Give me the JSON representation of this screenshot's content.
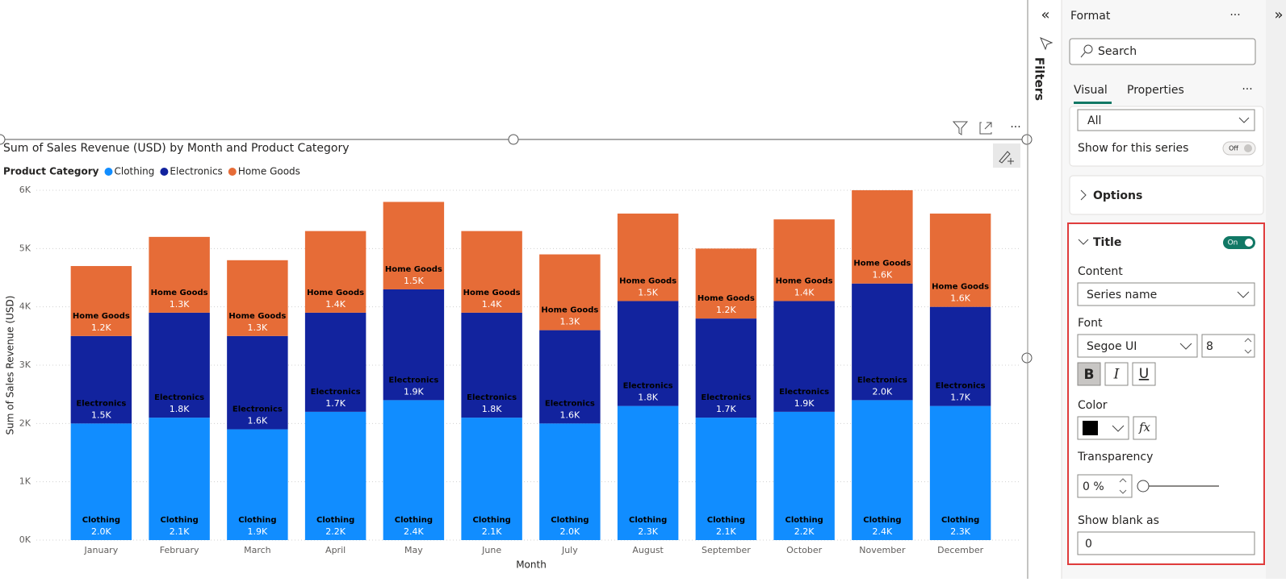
{
  "chart_data": {
    "type": "bar",
    "stacked": true,
    "title": "Sum of Sales Revenue (USD) by Month and Product Category",
    "legend_title": "Product Category",
    "legend": "top-left",
    "x_label": "Month",
    "y_label": "Sum of Sales Revenue (USD)",
    "categories": [
      "January",
      "February",
      "March",
      "April",
      "May",
      "June",
      "July",
      "August",
      "September",
      "October",
      "November",
      "December"
    ],
    "series": [
      {
        "name": "Clothing",
        "color": "#118DFF",
        "values": [
          2000,
          2100,
          1900,
          2200,
          2400,
          2100,
          2000,
          2300,
          2100,
          2200,
          2400,
          2300
        ],
        "value_labels": [
          "2.0K",
          "2.1K",
          "1.9K",
          "2.2K",
          "2.4K",
          "2.1K",
          "2.0K",
          "2.3K",
          "2.1K",
          "2.2K",
          "2.4K",
          "2.3K"
        ]
      },
      {
        "name": "Electronics",
        "color": "#12239E",
        "values": [
          1500,
          1800,
          1600,
          1700,
          1900,
          1800,
          1600,
          1800,
          1700,
          1900,
          2000,
          1700
        ],
        "value_labels": [
          "1.5K",
          "1.8K",
          "1.6K",
          "1.7K",
          "1.9K",
          "1.8K",
          "1.6K",
          "1.8K",
          "1.7K",
          "1.9K",
          "2.0K",
          "1.7K"
        ]
      },
      {
        "name": "Home Goods",
        "color": "#E66C37",
        "values": [
          1200,
          1300,
          1300,
          1400,
          1500,
          1400,
          1300,
          1500,
          1200,
          1400,
          1600,
          1600
        ],
        "value_labels": [
          "1.2K",
          "1.3K",
          "1.3K",
          "1.4K",
          "1.5K",
          "1.4K",
          "1.3K",
          "1.5K",
          "1.2K",
          "1.4K",
          "1.6K",
          "1.6K"
        ]
      }
    ],
    "ylim": [
      0,
      6000
    ],
    "yticks": [
      {
        "value": 0,
        "label": "0K"
      },
      {
        "value": 1000,
        "label": "1K"
      },
      {
        "value": 2000,
        "label": "2K"
      },
      {
        "value": 3000,
        "label": "3K"
      },
      {
        "value": 4000,
        "label": "4K"
      },
      {
        "value": 5000,
        "label": "5K"
      },
      {
        "value": 6000,
        "label": "6K"
      }
    ],
    "grid": true
  },
  "filters_pane": {
    "label": "Filters"
  },
  "format_pane": {
    "title": "Format",
    "search": "Search",
    "tabs": [
      "Visual",
      "Properties"
    ],
    "series_dropdown": "All",
    "show_for_series": "Show for this series",
    "show_for_series_toggle": "Off",
    "options": "Options",
    "title_section": {
      "heading": "Title",
      "toggle": "On",
      "content_label": "Content",
      "content_value": "Series name",
      "font_label": "Font",
      "font_family": "Segoe UI",
      "font_size": "8",
      "styles": [
        "B",
        "I",
        "U"
      ],
      "color_label": "Color",
      "fx": "fx",
      "transparency_label": "Transparency",
      "transparency_value": "0 %",
      "blank_label": "Show blank as",
      "blank_value": "0"
    }
  }
}
